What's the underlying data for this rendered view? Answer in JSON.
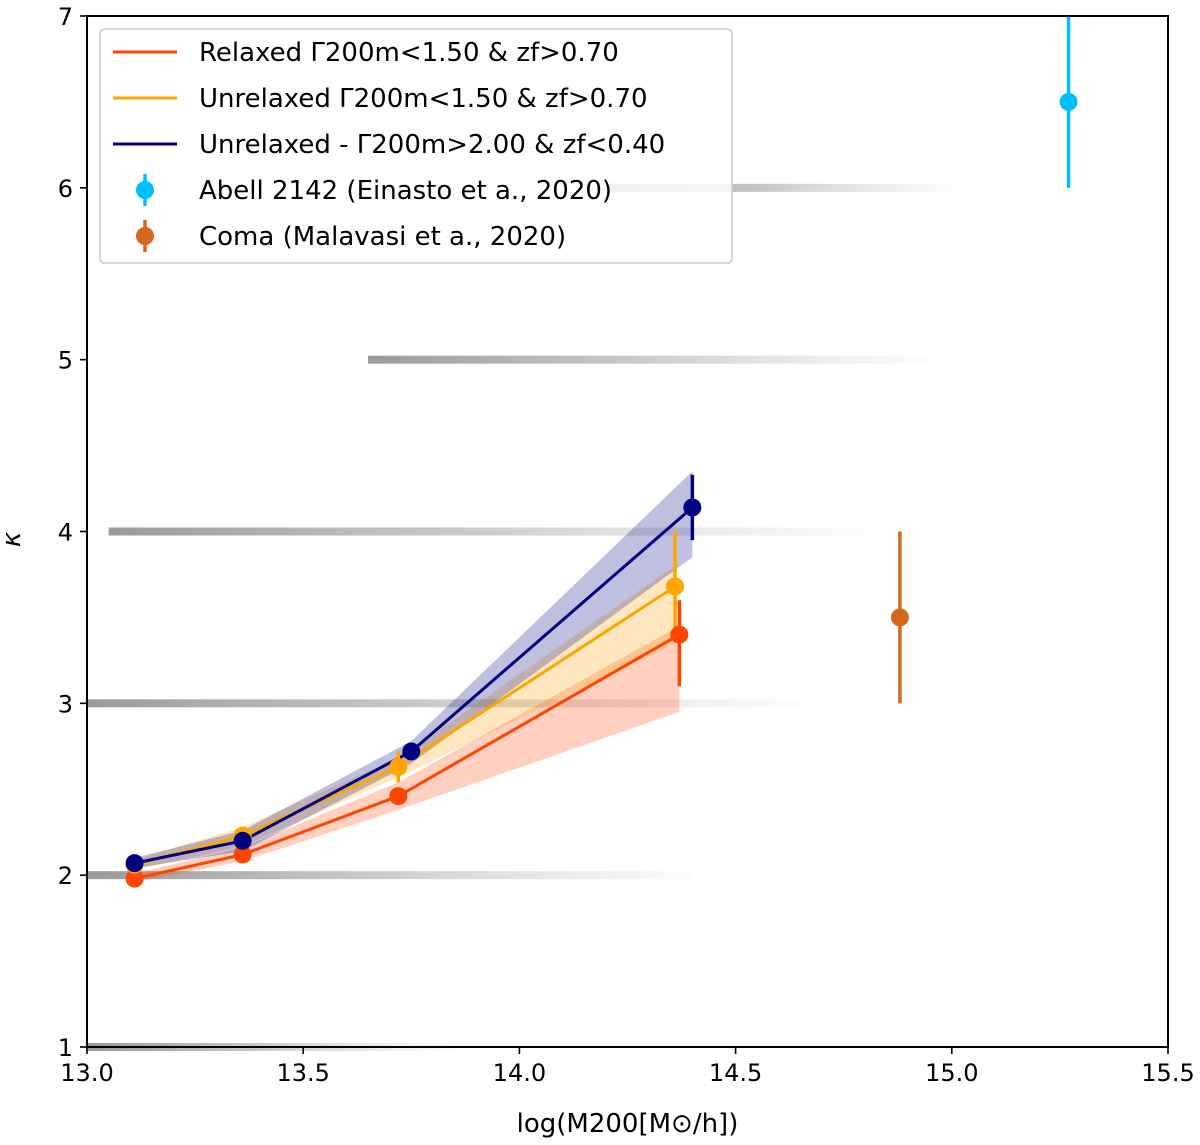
{
  "chart_data": {
    "type": "line",
    "title": "",
    "xlabel": "log(M200[M⊙/h])",
    "ylabel": "κ",
    "xlim": [
      13.0,
      15.5
    ],
    "ylim": [
      1,
      7
    ],
    "xticks": [
      "13.0",
      "13.5",
      "14.0",
      "14.5",
      "15.0",
      "15.5"
    ],
    "yticks": [
      "1",
      "2",
      "3",
      "4",
      "5",
      "6",
      "7"
    ],
    "grid": false,
    "legend_position": "upper-left",
    "series": [
      {
        "name": "Relaxed Γ200m<1.50 & zf>0.70",
        "color": "#ff4500",
        "x": [
          13.11,
          13.36,
          13.72,
          14.37
        ],
        "y": [
          1.98,
          2.12,
          2.46,
          3.4
        ],
        "band_low": [
          1.96,
          2.08,
          2.38,
          2.95
        ],
        "band_high": [
          2.01,
          2.16,
          2.54,
          3.45
        ],
        "errorbar": [
          null,
          null,
          null,
          [
            3.1,
            3.6
          ]
        ]
      },
      {
        "name": "Unrelaxed Γ200m<1.50 & zf>0.70",
        "color": "#ffa500",
        "x": [
          13.11,
          13.36,
          13.72,
          14.36
        ],
        "y": [
          2.06,
          2.23,
          2.63,
          3.68
        ],
        "band_low": [
          2.03,
          2.17,
          2.57,
          3.35
        ],
        "band_high": [
          2.09,
          2.28,
          2.68,
          3.8
        ],
        "errorbar": [
          null,
          null,
          [
            2.54,
            2.72
          ],
          [
            3.38,
            4.0
          ]
        ]
      },
      {
        "name": "Unrelaxed - Γ200m>2.00 & zf<0.40",
        "color": "#000080",
        "x": [
          13.11,
          13.36,
          13.75,
          14.4
        ],
        "y": [
          2.07,
          2.2,
          2.72,
          4.14
        ],
        "band_low": [
          2.04,
          2.14,
          2.65,
          3.85
        ],
        "band_high": [
          2.1,
          2.26,
          2.78,
          4.35
        ],
        "errorbar": [
          null,
          null,
          null,
          [
            3.95,
            4.33
          ]
        ]
      }
    ],
    "points": [
      {
        "name": "Abell 2142  (Einasto et a., 2020)",
        "color": "#00bfff",
        "x": 15.27,
        "y": 6.5,
        "err_low": 6.0,
        "err_high": 7.05
      },
      {
        "name": "Coma (Malavasi et a., 2020)",
        "color": "#d2691e",
        "x": 14.88,
        "y": 3.5,
        "err_low": 3.0,
        "err_high": 4.0
      }
    ],
    "background_strips": [
      {
        "y": 1,
        "x_start": 13.0,
        "x_end": 13.85
      },
      {
        "y": 2,
        "x_start": 13.0,
        "x_end": 14.4
      },
      {
        "y": 3,
        "x_start": 13.0,
        "x_end": 14.65
      },
      {
        "y": 4,
        "x_start": 13.05,
        "x_end": 14.8
      },
      {
        "y": 5,
        "x_start": 13.65,
        "x_end": 14.95
      },
      {
        "y": 6,
        "x_start": 14.2,
        "x_end": 15.0
      }
    ]
  }
}
